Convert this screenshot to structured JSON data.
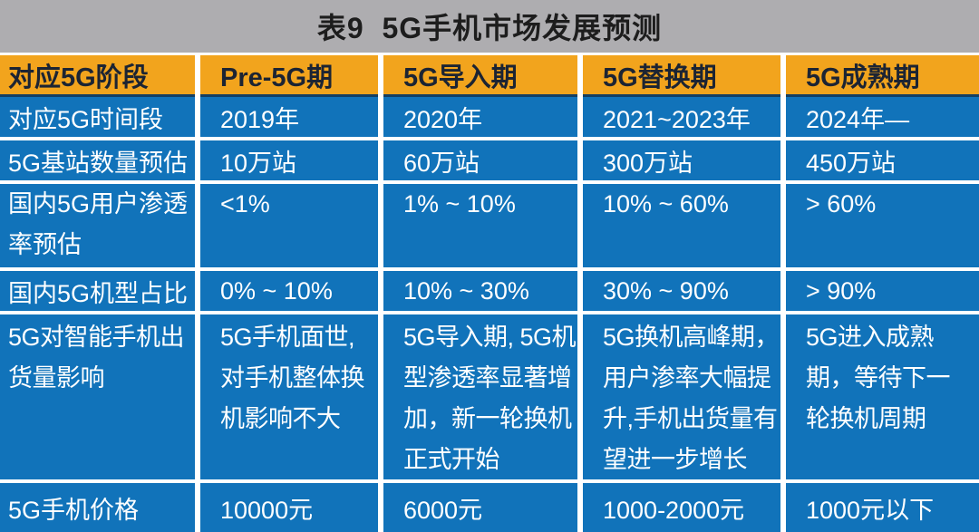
{
  "title": "表9  5G手机市场发展预测",
  "colors": {
    "page_bg": "#aeadb0",
    "title_text": "#1d1d1d",
    "header_bg": "#f2a41d",
    "header_text": "#1c2433",
    "cell_bg": "#1173ba",
    "cell_text": "#ffffff",
    "grid_line": "#ffffff",
    "header_divider": "#143f63"
  },
  "table": {
    "header": {
      "cells": [
        "对应5G阶段",
        "Pre-5G期",
        "5G导入期",
        "5G替换期",
        "5G成熟期"
      ]
    },
    "rows": [
      {
        "cells": [
          "对应5G时间段",
          "2019年",
          "2020年",
          "2021~2023年",
          "2024年—"
        ]
      },
      {
        "cells": [
          "5G基站数量预估",
          "10万站",
          "60万站",
          "300万站",
          "450万站"
        ]
      },
      {
        "cells": [
          "国内5G用户渗透\n率预估",
          "<1%",
          "1% ~ 10%",
          "10% ~ 60%",
          "> 60%"
        ]
      },
      {
        "cells": [
          "国内5G机型占比",
          "0% ~ 10%",
          "10% ~ 30%",
          "30% ~ 90%",
          "> 90%"
        ]
      },
      {
        "cells": [
          "5G对智能手机出\n货量影响",
          "5G手机面世,\n对手机整体换\n机影响不大",
          "5G导入期, 5G机\n型渗透率显著增\n加，新一轮换机\n正式开始",
          "5G换机高峰期，\n用户渗率大幅提\n升,手机出货量有\n望进一步增长",
          "5G进入成熟\n期，等待下一\n轮换机周期"
        ]
      },
      {
        "cells": [
          "5G手机价格",
          "10000元",
          "6000元",
          "1000-2000元",
          "1000元以下"
        ]
      }
    ]
  }
}
